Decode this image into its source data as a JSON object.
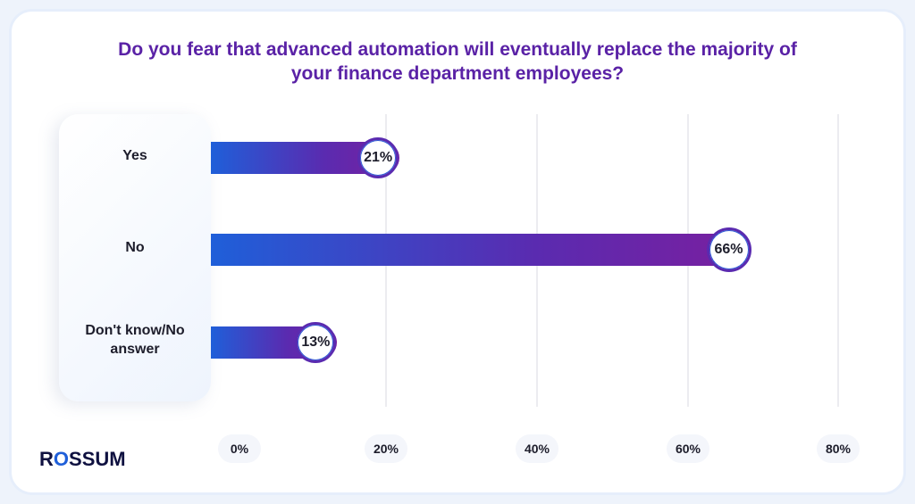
{
  "brand": {
    "logo_prefix": "R",
    "logo_o": "O",
    "logo_rest": "SSUM",
    "color_accent": "#1f5fd9",
    "color_text": "#0f1140"
  },
  "chart_data": {
    "type": "bar",
    "orientation": "horizontal",
    "title_line1": "Do you fear that advanced automation will eventually replace the majority of",
    "title_line2": "your finance department employees?",
    "categories": [
      "Yes",
      "No",
      "Don't know/No answer"
    ],
    "values": [
      21,
      66,
      13
    ],
    "value_labels": [
      "21%",
      "66%",
      "13%"
    ],
    "xlim": [
      0,
      80
    ],
    "x_ticks": [
      0,
      20,
      40,
      60,
      80
    ],
    "x_tick_labels": [
      "0%",
      "20%",
      "40%",
      "60%",
      "80%"
    ],
    "grid": true,
    "colors": {
      "bar_start": "#1f5fd9",
      "bar_end": "#7a1f9f",
      "title": "#5a22a6"
    }
  }
}
